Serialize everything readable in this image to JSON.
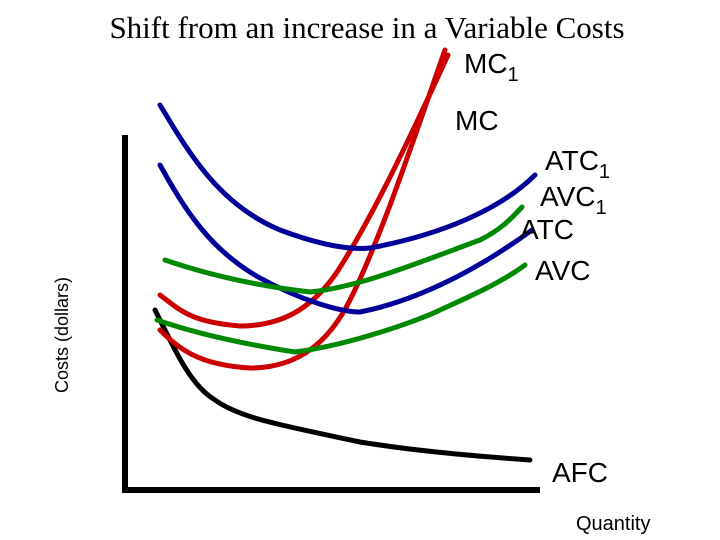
{
  "title": "Shift from an increase in a Variable  Costs",
  "y_axis_label": "Costs (dollars)",
  "x_axis_label": "Quantity",
  "curve_labels": {
    "mc1": {
      "text": "MC",
      "sub": "1"
    },
    "mc": {
      "text": "MC"
    },
    "atc1": {
      "text": "ATC",
      "sub": "1"
    },
    "avc1": {
      "text": "AVC",
      "sub": "1"
    },
    "atc": {
      "text": "ATC"
    },
    "avc": {
      "text": "AVC"
    },
    "afc": {
      "text": "AFC"
    }
  }
}
